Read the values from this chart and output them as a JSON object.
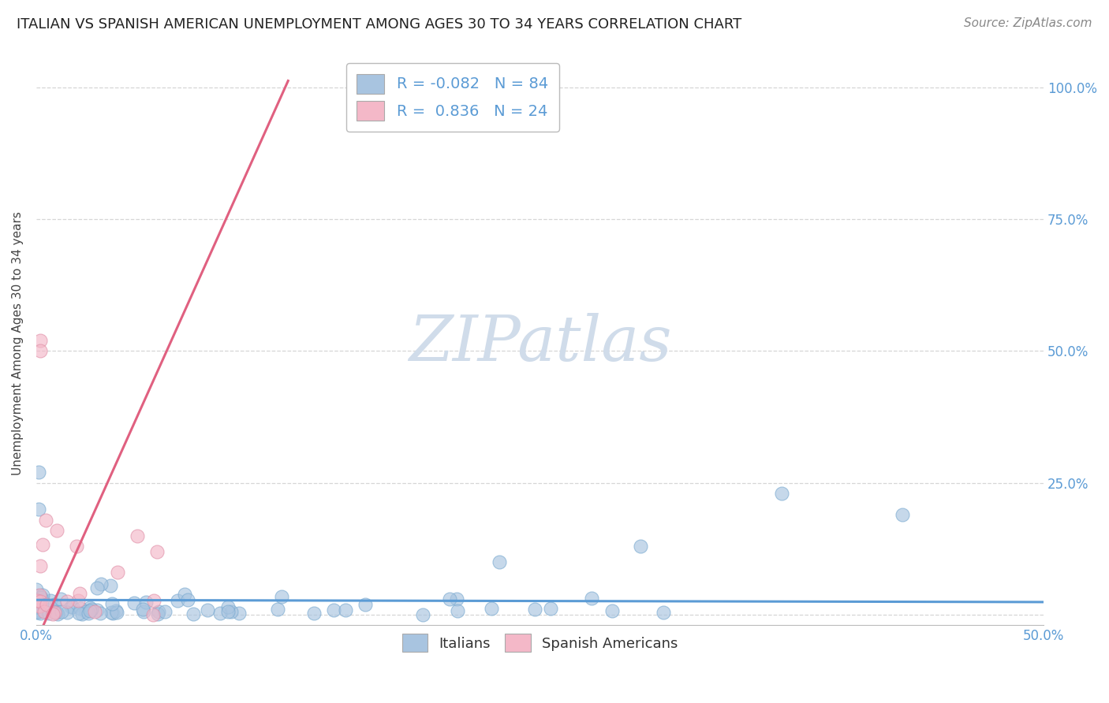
{
  "title": "ITALIAN VS SPANISH AMERICAN UNEMPLOYMENT AMONG AGES 30 TO 34 YEARS CORRELATION CHART",
  "source": "Source: ZipAtlas.com",
  "ylabel": "Unemployment Among Ages 30 to 34 years",
  "xlim": [
    0.0,
    0.5
  ],
  "ylim": [
    -0.02,
    1.05
  ],
  "xticks": [
    0.0,
    0.1,
    0.2,
    0.3,
    0.4,
    0.5
  ],
  "xtick_labels": [
    "0.0%",
    "",
    "",
    "",
    "",
    "50.0%"
  ],
  "yticks": [
    0.0,
    0.25,
    0.5,
    0.75,
    1.0
  ],
  "ytick_labels_right": [
    "",
    "25.0%",
    "50.0%",
    "75.0%",
    "100.0%"
  ],
  "italian_color": "#a8c4e0",
  "italian_edge": "#7aaad0",
  "spanish_color": "#f4b8c8",
  "spanish_edge": "#e090a8",
  "italian_line_color": "#5b9bd5",
  "spanish_line_color": "#e06080",
  "italian_R": -0.082,
  "italian_N": 84,
  "spanish_R": 0.836,
  "spanish_N": 24,
  "watermark": "ZIPatlas",
  "watermark_color": "#d0dcea",
  "legend_labels": [
    "Italians",
    "Spanish Americans"
  ],
  "title_fontsize": 13,
  "axis_label_fontsize": 11,
  "tick_fontsize": 12,
  "source_fontsize": 11,
  "legend_fontsize": 13,
  "corr_legend_fontsize": 14
}
